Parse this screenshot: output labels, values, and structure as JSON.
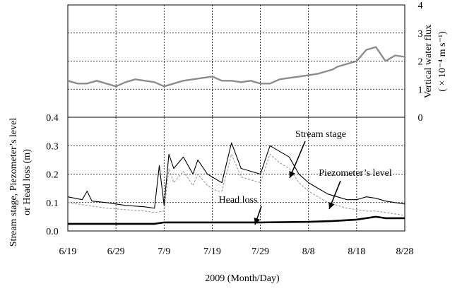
{
  "chart_data": [
    {
      "id": "top",
      "type": "line",
      "ylabel": "Vertical water flux",
      "ylabel_units": "( × 10⁻⁴ m s⁻¹)",
      "xlim": [
        0,
        70
      ],
      "ylim": [
        0,
        4
      ],
      "y_ticks": [
        "0",
        "1",
        "2",
        "3",
        "4"
      ],
      "grid": true,
      "series": [
        {
          "color": "#8c8c8c",
          "x": [
            0,
            2,
            4,
            6,
            8,
            10,
            12,
            14,
            16,
            18,
            20,
            22,
            24,
            26,
            28,
            30,
            32,
            34,
            36,
            38,
            40,
            42,
            44,
            46,
            48,
            50,
            52,
            54,
            55,
            56,
            58,
            60,
            62,
            64,
            66,
            68,
            70
          ],
          "y": [
            1.3,
            1.2,
            1.2,
            1.3,
            1.2,
            1.1,
            1.25,
            1.35,
            1.3,
            1.25,
            1.1,
            1.2,
            1.3,
            1.35,
            1.4,
            1.45,
            1.3,
            1.3,
            1.25,
            1.3,
            1.2,
            1.2,
            1.35,
            1.4,
            1.45,
            1.5,
            1.55,
            1.65,
            1.7,
            1.8,
            1.9,
            2.0,
            2.4,
            2.5,
            2.0,
            2.2,
            2.15
          ]
        }
      ]
    },
    {
      "id": "bottom",
      "type": "line",
      "ylabel": "Stream stage,  Piezometer’s level",
      "ylabel2": "or Head loss (m)",
      "xlabel": "2009 (Month/Day)",
      "xlim": [
        0,
        70
      ],
      "ylim": [
        0,
        0.4
      ],
      "y_ticks": [
        "0.0",
        "0.1",
        "0.2",
        "0.3",
        "0.4"
      ],
      "x_ticks": [
        "6/19",
        "6/29",
        "7/9",
        "7/19",
        "7/29",
        "8/8",
        "8/18",
        "8/28"
      ],
      "grid": true,
      "annotations": [
        {
          "text": "Stream stage",
          "series": "Stream stage"
        },
        {
          "text": "Piezometer’s level",
          "series": "Piezometer’s level"
        },
        {
          "text": "Head loss",
          "series": "Head loss"
        }
      ],
      "series": [
        {
          "name": "Stream stage",
          "color": "#000000",
          "x": [
            0,
            3,
            4,
            5,
            8,
            12,
            16,
            18,
            19,
            20,
            21,
            22,
            24,
            26,
            27,
            29,
            31,
            32,
            34,
            36,
            38,
            40,
            42,
            44,
            46,
            48,
            50,
            52,
            54,
            56,
            58,
            60,
            62,
            64,
            66,
            68,
            70
          ],
          "y": [
            0.12,
            0.11,
            0.14,
            0.105,
            0.1,
            0.09,
            0.085,
            0.08,
            0.23,
            0.09,
            0.27,
            0.22,
            0.26,
            0.2,
            0.25,
            0.2,
            0.18,
            0.17,
            0.31,
            0.22,
            0.21,
            0.2,
            0.3,
            0.28,
            0.26,
            0.2,
            0.17,
            0.15,
            0.13,
            0.12,
            0.11,
            0.11,
            0.12,
            0.115,
            0.105,
            0.1,
            0.095
          ]
        },
        {
          "name": "Piezometer’s level",
          "color": "#9a9a9a",
          "x": [
            0,
            4,
            8,
            12,
            16,
            18,
            20,
            21,
            22,
            24,
            26,
            27,
            29,
            31,
            32,
            34,
            36,
            38,
            40,
            42,
            44,
            46,
            48,
            50,
            52,
            54,
            56,
            58,
            60,
            62,
            64,
            66,
            68,
            70
          ],
          "y": [
            0.1,
            0.09,
            0.08,
            0.075,
            0.07,
            0.065,
            0.07,
            0.22,
            0.17,
            0.21,
            0.16,
            0.2,
            0.16,
            0.14,
            0.14,
            0.27,
            0.19,
            0.18,
            0.17,
            0.27,
            0.24,
            0.22,
            0.17,
            0.14,
            0.12,
            0.1,
            0.09,
            0.08,
            0.075,
            0.07,
            0.07,
            0.065,
            0.06,
            0.055
          ]
        },
        {
          "name": "Head loss",
          "color": "#000000",
          "x": [
            0,
            10,
            18,
            20,
            30,
            40,
            50,
            55,
            60,
            62,
            64,
            66,
            68,
            70
          ],
          "y": [
            0.025,
            0.025,
            0.025,
            0.03,
            0.03,
            0.03,
            0.032,
            0.035,
            0.04,
            0.045,
            0.05,
            0.045,
            0.045,
            0.045
          ]
        }
      ]
    }
  ]
}
